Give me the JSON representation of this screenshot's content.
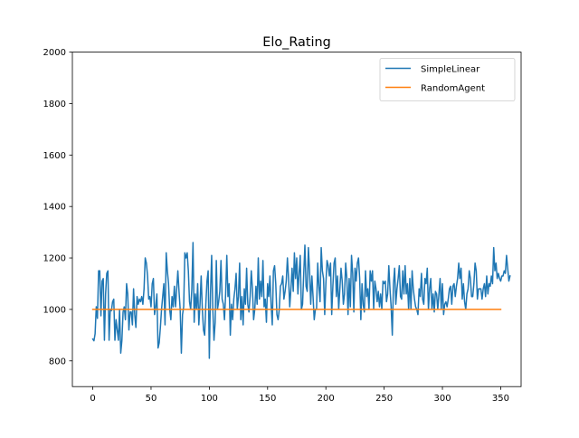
{
  "chart_data": {
    "type": "line",
    "title": "Elo_Rating",
    "xlabel": "",
    "ylabel": "",
    "xlim": [
      -17.5,
      367.5
    ],
    "ylim": [
      700,
      2000
    ],
    "x_ticks": [
      0,
      50,
      100,
      150,
      200,
      250,
      300,
      350
    ],
    "y_ticks": [
      800,
      1000,
      1200,
      1400,
      1600,
      1800,
      2000
    ],
    "x_tick_labels": [
      "0",
      "50",
      "100",
      "150",
      "200",
      "250",
      "300",
      "350"
    ],
    "y_tick_labels": [
      "800",
      "1000",
      "1200",
      "1400",
      "1600",
      "1800",
      "2000"
    ],
    "grid": false,
    "legend_position": "top-right",
    "series": [
      {
        "name": "SimpleLinear",
        "color": "#1f77b4",
        "x_start": 0,
        "values": [
          885,
          878,
          905,
          1010,
          965,
          1150,
          1150,
          975,
          1110,
          1120,
          880,
          1060,
          1140,
          1150,
          880,
          1000,
          995,
          1030,
          1040,
          880,
          960,
          920,
          880,
          1000,
          830,
          880,
          990,
          1010,
          960,
          1100,
          1060,
          920,
          990,
          990,
          940,
          1080,
          980,
          930,
          1050,
          1020,
          1040,
          1030,
          1050,
          1020,
          1080,
          1200,
          1180,
          1130,
          1040,
          1050,
          1010,
          1100,
          1120,
          980,
          1010,
          1060,
          850,
          870,
          930,
          1000,
          1050,
          1100,
          940,
          1220,
          1150,
          1100,
          1000,
          960,
          1050,
          1010,
          1090,
          1010,
          1080,
          1150,
          1070,
          1000,
          830,
          980,
          1010,
          1220,
          1200,
          1220,
          1150,
          1030,
          1000,
          1080,
          1260,
          950,
          1060,
          1000,
          1100,
          940,
          1020,
          1130,
          1000,
          920,
          900,
          1020,
          1110,
          1150,
          810,
          1060,
          1210,
          1000,
          880,
          950,
          1190,
          1000,
          1030,
          1070,
          1190,
          1040,
          1020,
          960,
          1060,
          1210,
          1050,
          1100,
          900,
          1020,
          960,
          1040,
          1080,
          1140,
          1000,
          1050,
          1180,
          960,
          1050,
          940,
          1080,
          1020,
          1160,
          1020,
          990,
          1050,
          1150,
          1080,
          960,
          1000,
          1090,
          1020,
          1200,
          1040,
          1110,
          1050,
          1190,
          1010,
          1040,
          950,
          1100,
          1050,
          1130,
          1020,
          940,
          1150,
          1170,
          1100,
          980,
          960,
          1000,
          1090,
          1100,
          1130,
          1040,
          1070,
          1110,
          1200,
          1120,
          1010,
          1080,
          1160,
          1070,
          1220,
          1120,
          1200,
          1060,
          1140,
          1210,
          1000,
          1020,
          1140,
          1250,
          1090,
          1070,
          1240,
          1150,
          1020,
          1130,
          1050,
          960,
          1000,
          1000,
          1180,
          1090,
          1030,
          1240,
          1150,
          1120,
          980,
          1100,
          1190,
          1170,
          1130,
          1180,
          980,
          1090,
          1180,
          1200,
          1050,
          1130,
          1000,
          1080,
          1160,
          1110,
          1020,
          1060,
          1180,
          1120,
          980,
          1120,
          1010,
          1210,
          1140,
          990,
          1160,
          1110,
          1180,
          1200,
          1120,
          960,
          1100,
          1020,
          990,
          1150,
          1050,
          1080,
          1000,
          1150,
          1110,
          1150,
          1000,
          1110,
          1080,
          1030,
          1070,
          1010,
          1060,
          1000,
          1110,
          1100,
          1110,
          1030,
          1060,
          1170,
          1080,
          1010,
          900,
          1100,
          1160,
          1020,
          1080,
          1120,
          1170,
          1050,
          1040,
          1150,
          1060,
          1170,
          1060,
          1100,
          1000,
          1120,
          1000,
          1150,
          1080,
          1040,
          1010,
          1000,
          980,
          1080,
          1050,
          1140,
          1040,
          1020,
          1120,
          1100,
          1160,
          1000,
          1080,
          1120,
          1000,
          1060,
          990,
          1070,
          1060,
          1000,
          1060,
          1120,
          1000,
          1100,
          980,
          1020,
          1030,
          1010,
          1040,
          1080,
          1090,
          1020,
          1090,
          1100,
          1050,
          1090,
          1120,
          1180,
          1120,
          1160,
          1040,
          1100,
          1030,
          1000,
          1060,
          1080,
          1150,
          1120,
          1050,
          1050,
          1100,
          1180,
          1150,
          1040,
          1080,
          1080,
          1080,
          1040,
          1080,
          1100,
          1050,
          1130,
          1060,
          1100,
          1090,
          1130,
          1100,
          1240,
          1150,
          1180,
          1120,
          1140,
          1120,
          1110,
          1130,
          1130,
          1150,
          1140,
          1210,
          1160,
          1110,
          1130
        ]
      },
      {
        "name": "RandomAgent",
        "color": "#ff7f0e",
        "x": [
          0,
          350
        ],
        "values": [
          1000,
          1000
        ]
      }
    ]
  }
}
